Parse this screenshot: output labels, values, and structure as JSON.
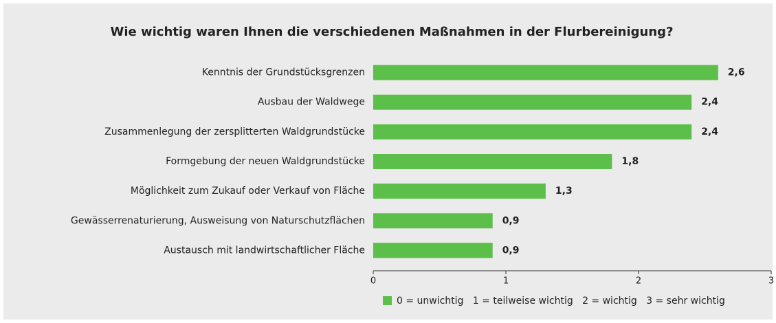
{
  "chart_data": {
    "type": "bar",
    "orientation": "horizontal",
    "title": "Wie wichtig waren Ihnen die verschiedenen Maßnahmen in der Flurbereinigung?",
    "categories": [
      "Kenntnis der Grundstücksgrenzen",
      "Ausbau der Waldwege",
      "Zusammenlegung der zersplitterten Waldgrundstücke",
      "Formgebung der neuen Waldgrundstücke",
      "Möglichkeit zum Zukauf oder Verkauf von Fläche",
      "Gewässerrenaturierung, Ausweisung von Naturschutzflächen",
      "Austausch mit landwirtschaftlicher Fläche"
    ],
    "series": [
      {
        "name": "0 = unwichtig   1 = teilweise wichtig   2 = wichtig   3 = sehr wichtig",
        "color": "#5bbf4a",
        "values": [
          2.6,
          2.4,
          2.4,
          1.8,
          1.3,
          0.9,
          0.9
        ],
        "value_labels": [
          "2,6",
          "2,4",
          "2,4",
          "1,8",
          "1,3",
          "0,9",
          "0,9"
        ]
      }
    ],
    "xlim": [
      0,
      3
    ],
    "xticks": [
      0,
      1,
      2,
      3
    ],
    "legend": "bottom"
  }
}
